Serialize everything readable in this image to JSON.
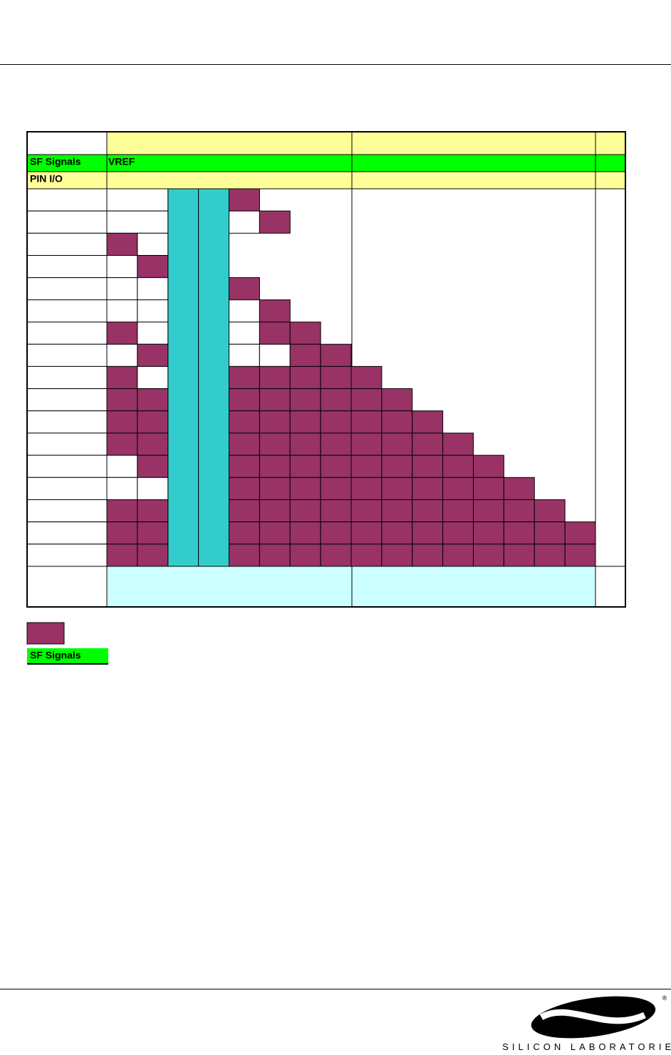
{
  "table": {
    "rows": [
      {
        "label": "SF Signals",
        "cells": [
          "VREF"
        ]
      },
      {
        "label": "PIN I/O"
      }
    ]
  },
  "legend": {
    "label": "SF Signals"
  },
  "footer": {
    "logo_text": "SILICON LABORATORIES",
    "trademark": "®"
  }
}
